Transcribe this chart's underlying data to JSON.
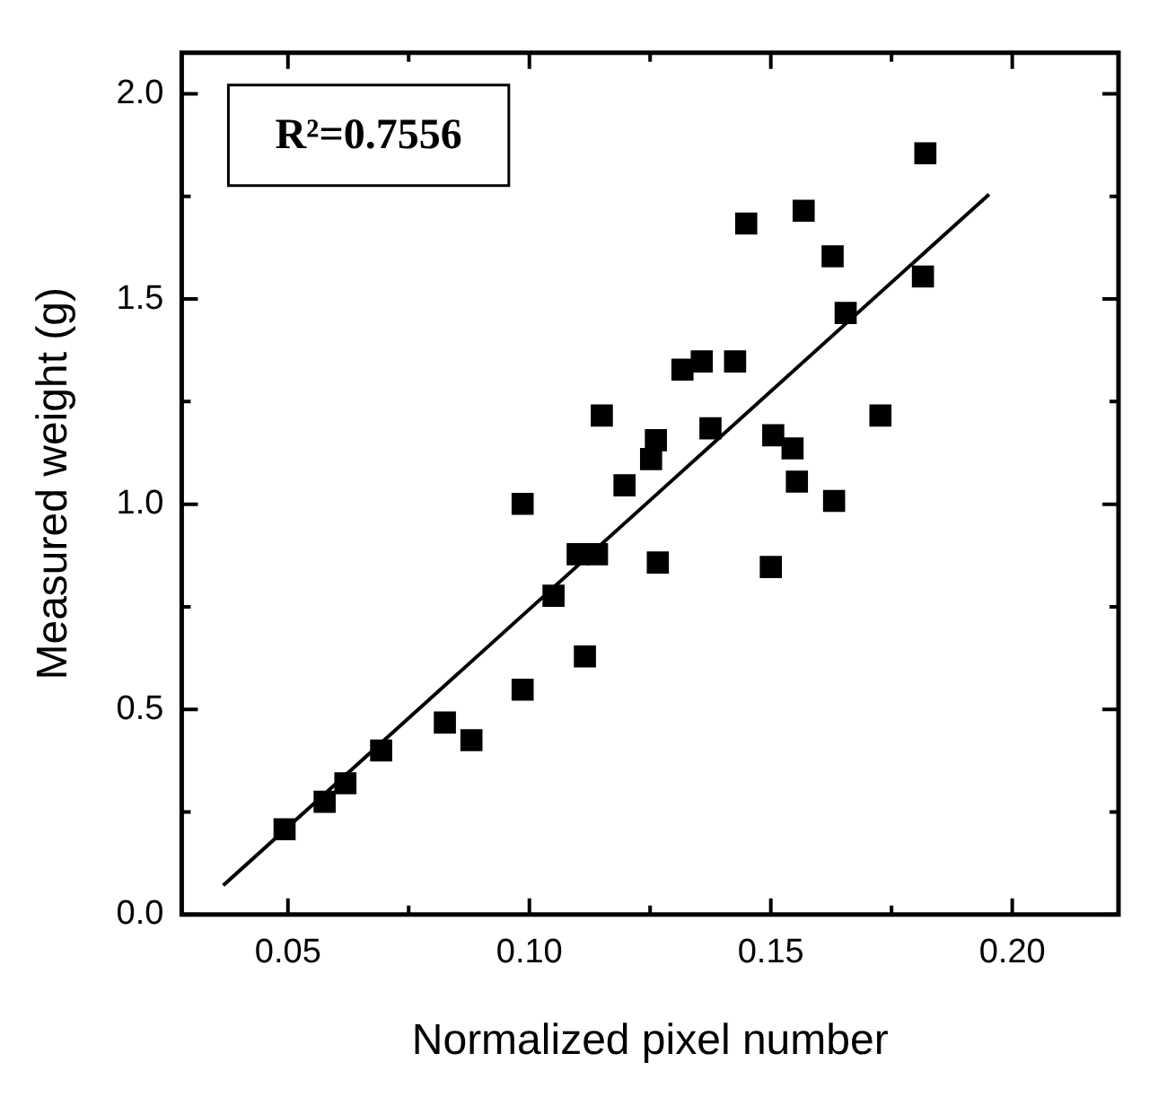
{
  "chart_data": {
    "type": "scatter",
    "xlabel": "Normalized pixel number",
    "ylabel": "Measured weight (g)",
    "annotations": [
      "R²=0.7556"
    ],
    "xlim": [
      0.028,
      0.222
    ],
    "ylim": [
      0,
      2.1
    ],
    "xticks": [
      0.05,
      {
        "value": 0.075,
        "label": null
      },
      "0.10",
      {
        "value": 0.125,
        "label": null
      },
      0.15,
      {
        "value": 0.175,
        "label": null
      },
      "0.20"
    ],
    "yticks": [
      "0.0",
      {
        "value": 0.25,
        "label": null
      },
      0.5,
      {
        "value": 0.75,
        "label": null
      },
      "1.0",
      {
        "value": 1.25,
        "label": null
      },
      1.5,
      {
        "value": 1.75,
        "label": null
      },
      "2.0"
    ],
    "series": [
      {
        "marker": "square",
        "color": "#000000",
        "x": [
          0.0493,
          0.0576,
          0.0619,
          0.0693,
          0.0825,
          0.088,
          0.0986,
          0.0986,
          0.105,
          0.1115,
          0.11,
          0.114,
          0.182,
          0.1568,
          0.1449,
          0.1628,
          0.1815,
          0.1655,
          0.1317,
          0.1357,
          0.1426,
          0.115,
          0.1727,
          0.1375,
          0.1262,
          0.1252,
          0.1505,
          0.1545,
          0.1197,
          0.1554,
          0.1631,
          0.1266,
          0.15
        ],
        "values": [
          0.208,
          0.275,
          0.32,
          0.4,
          0.468,
          0.425,
          0.548,
          1.001,
          0.777,
          0.629,
          0.878,
          0.878,
          1.855,
          1.715,
          1.684,
          1.604,
          1.555,
          1.466,
          1.328,
          1.348,
          1.348,
          1.216,
          1.216,
          1.185,
          1.156,
          1.11,
          1.168,
          1.136,
          1.046,
          1.055,
          1.008,
          0.858,
          0.847
        ]
      },
      {
        "type": "line",
        "marker": "none",
        "color": "#000000",
        "x": [
          0.0366,
          0.1952
        ],
        "values": [
          0.071,
          1.755
        ]
      }
    ]
  }
}
